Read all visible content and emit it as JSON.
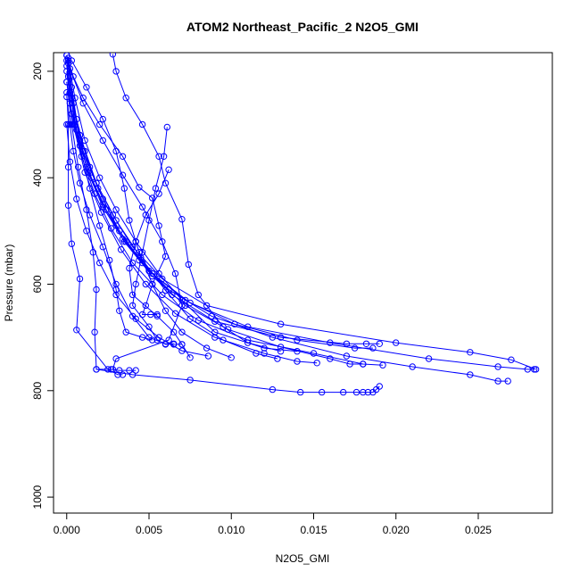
{
  "chart_data": {
    "type": "line",
    "title": "ATOM2 Northeast_Pacific_2 N2O5_GMI",
    "xlabel": "N2O5_GMI",
    "ylabel": "Pressure (mbar)",
    "xlim": [
      -0.0008,
      0.0295
    ],
    "ylim": [
      1030,
      165
    ],
    "y_inverted": true,
    "x_ticks": [
      {
        "value": 0.0,
        "label": "0.000"
      },
      {
        "value": 0.005,
        "label": "0.005"
      },
      {
        "value": 0.01,
        "label": "0.010"
      },
      {
        "value": 0.015,
        "label": "0.015"
      },
      {
        "value": 0.02,
        "label": "0.020"
      },
      {
        "value": 0.025,
        "label": "0.025"
      }
    ],
    "y_ticks": [
      {
        "value": 200,
        "label": "200"
      },
      {
        "value": 400,
        "label": "400"
      },
      {
        "value": 600,
        "label": "600"
      },
      {
        "value": 800,
        "label": "800"
      },
      {
        "value": 1000,
        "label": "1000"
      }
    ],
    "color": "#0000ff",
    "marker": "open-circle",
    "grid": false,
    "legend": "none",
    "series": [
      {
        "points": [
          [
            0.0,
            170
          ],
          [
            0.0002,
            210
          ],
          [
            0.0004,
            260
          ],
          [
            0.0008,
            320
          ],
          [
            0.0014,
            380
          ],
          [
            0.0022,
            440
          ],
          [
            0.0032,
            500
          ],
          [
            0.0046,
            560
          ],
          [
            0.0064,
            620
          ],
          [
            0.009,
            670
          ],
          [
            0.013,
            700
          ],
          [
            0.017,
            712
          ],
          [
            0.0182,
            712
          ],
          [
            0.019,
            712
          ]
        ]
      },
      {
        "points": [
          [
            0.0001,
            175
          ],
          [
            0.0003,
            230
          ],
          [
            0.0006,
            290
          ],
          [
            0.0011,
            350
          ],
          [
            0.0018,
            410
          ],
          [
            0.0028,
            470
          ],
          [
            0.004,
            530
          ],
          [
            0.0058,
            590
          ],
          [
            0.0085,
            640
          ],
          [
            0.013,
            675
          ],
          [
            0.02,
            710
          ],
          [
            0.0245,
            728
          ],
          [
            0.027,
            742
          ],
          [
            0.0285,
            760
          ]
        ]
      },
      {
        "points": [
          [
            0.0,
            180
          ],
          [
            0.0003,
            250
          ],
          [
            0.0008,
            330
          ],
          [
            0.0015,
            400
          ],
          [
            0.0024,
            460
          ],
          [
            0.0036,
            520
          ],
          [
            0.0052,
            580
          ],
          [
            0.0075,
            635
          ],
          [
            0.011,
            680
          ],
          [
            0.016,
            710
          ],
          [
            0.022,
            740
          ],
          [
            0.0262,
            755
          ],
          [
            0.028,
            760
          ],
          [
            0.0284,
            760
          ]
        ]
      },
      {
        "points": [
          [
            0.0001,
            185
          ],
          [
            0.0004,
            260
          ],
          [
            0.001,
            350
          ],
          [
            0.0019,
            420
          ],
          [
            0.003,
            490
          ],
          [
            0.0044,
            555
          ],
          [
            0.0062,
            610
          ],
          [
            0.0088,
            660
          ],
          [
            0.0125,
            700
          ],
          [
            0.017,
            735
          ],
          [
            0.021,
            755
          ],
          [
            0.0245,
            770
          ],
          [
            0.0262,
            782
          ],
          [
            0.0268,
            782
          ]
        ]
      },
      {
        "points": [
          [
            0.0,
            190
          ],
          [
            0.0002,
            240
          ],
          [
            0.0006,
            310
          ],
          [
            0.0013,
            390
          ],
          [
            0.0022,
            455
          ],
          [
            0.0034,
            515
          ],
          [
            0.005,
            575
          ],
          [
            0.0072,
            630
          ],
          [
            0.0102,
            675
          ],
          [
            0.014,
            705
          ],
          [
            0.0175,
            720
          ],
          [
            0.0186,
            720
          ]
        ]
      },
      {
        "points": [
          [
            0.0,
            200
          ],
          [
            0.0003,
            280
          ],
          [
            0.0009,
            360
          ],
          [
            0.0017,
            430
          ],
          [
            0.0027,
            495
          ],
          [
            0.004,
            560
          ],
          [
            0.0058,
            620
          ],
          [
            0.008,
            668
          ],
          [
            0.011,
            705
          ],
          [
            0.015,
            730
          ],
          [
            0.018,
            750
          ],
          [
            0.0192,
            752
          ]
        ]
      },
      {
        "points": [
          [
            0.0001,
            210
          ],
          [
            0.0005,
            300
          ],
          [
            0.0012,
            380
          ],
          [
            0.0022,
            450
          ],
          [
            0.0035,
            520
          ],
          [
            0.0052,
            585
          ],
          [
            0.0072,
            640
          ],
          [
            0.0098,
            685
          ],
          [
            0.013,
            718
          ],
          [
            0.016,
            740
          ],
          [
            0.0172,
            750
          ],
          [
            0.018,
            750
          ]
        ]
      },
      {
        "points": [
          [
            0.0,
            220
          ],
          [
            0.0004,
            300
          ],
          [
            0.0011,
            390
          ],
          [
            0.0021,
            465
          ],
          [
            0.0033,
            535
          ],
          [
            0.0048,
            600
          ],
          [
            0.0066,
            655
          ],
          [
            0.009,
            700
          ],
          [
            0.012,
            730
          ],
          [
            0.014,
            745
          ],
          [
            0.0152,
            748
          ]
        ]
      },
      {
        "points": [
          [
            0.0002,
            240
          ],
          [
            0.0008,
            320
          ],
          [
            0.0018,
            410
          ],
          [
            0.003,
            480
          ],
          [
            0.0045,
            550
          ],
          [
            0.006,
            612
          ],
          [
            0.0075,
            665
          ],
          [
            0.0095,
            705
          ],
          [
            0.0115,
            730
          ],
          [
            0.0128,
            740
          ]
        ]
      },
      {
        "points": [
          [
            0.0003,
            180
          ],
          [
            0.0012,
            230
          ],
          [
            0.0022,
            290
          ],
          [
            0.003,
            350
          ],
          [
            0.0035,
            420
          ],
          [
            0.0038,
            480
          ],
          [
            0.0044,
            540
          ],
          [
            0.0052,
            600
          ],
          [
            0.006,
            650
          ],
          [
            0.007,
            690
          ],
          [
            0.0085,
            720
          ],
          [
            0.01,
            738
          ]
        ]
      },
      {
        "points": [
          [
            0.0,
            220
          ],
          [
            0.0003,
            300
          ],
          [
            0.0007,
            380
          ],
          [
            0.0012,
            460
          ],
          [
            0.0016,
            540
          ],
          [
            0.0018,
            610
          ],
          [
            0.0017,
            690
          ],
          [
            0.0018,
            760
          ],
          [
            0.0027,
            760
          ],
          [
            0.0032,
            762
          ],
          [
            0.0038,
            762
          ],
          [
            0.0042,
            762
          ]
        ]
      },
      {
        "points": [
          [
            0.0,
            240
          ],
          [
            0.0001,
            300
          ],
          [
            0.0001,
            380
          ],
          [
            0.0001,
            452
          ],
          [
            0.0003,
            524
          ],
          [
            0.0008,
            590
          ],
          [
            0.0006,
            686
          ],
          [
            0.0025,
            760
          ],
          [
            0.0031,
            770
          ],
          [
            0.0034,
            770
          ]
        ]
      },
      {
        "points": [
          [
            0.0001,
            180
          ],
          [
            0.0005,
            250
          ],
          [
            0.0011,
            330
          ],
          [
            0.002,
            400
          ],
          [
            0.003,
            460
          ],
          [
            0.0042,
            520
          ],
          [
            0.0056,
            580
          ],
          [
            0.007,
            630
          ],
          [
            0.009,
            690
          ],
          [
            0.012,
            720
          ],
          [
            0.014,
            726
          ]
        ]
      },
      {
        "points": [
          [
            0.0002,
            195
          ],
          [
            0.001,
            260
          ],
          [
            0.0022,
            330
          ],
          [
            0.0034,
            395
          ],
          [
            0.0046,
            455
          ],
          [
            0.0058,
            520
          ],
          [
            0.0066,
            580
          ],
          [
            0.007,
            640
          ],
          [
            0.0062,
            705
          ],
          [
            0.003,
            740
          ],
          [
            0.0028,
            760
          ]
        ]
      },
      {
        "points": [
          [
            0.0028,
            168
          ],
          [
            0.003,
            200
          ],
          [
            0.0036,
            250
          ],
          [
            0.0046,
            300
          ],
          [
            0.0056,
            360
          ],
          [
            0.006,
            410
          ],
          [
            0.007,
            478
          ],
          [
            0.0074,
            563
          ],
          [
            0.008,
            620
          ],
          [
            0.0095,
            680
          ],
          [
            0.011,
            710
          ],
          [
            0.013,
            726
          ]
        ]
      },
      {
        "points": [
          [
            0.0,
            170
          ],
          [
            0.0004,
            210
          ],
          [
            0.001,
            250
          ],
          [
            0.002,
            300
          ],
          [
            0.0034,
            360
          ],
          [
            0.0044,
            418
          ],
          [
            0.0052,
            438
          ],
          [
            0.0056,
            490
          ],
          [
            0.006,
            548
          ],
          [
            0.0052,
            600
          ],
          [
            0.0048,
            640
          ],
          [
            0.0046,
            657
          ],
          [
            0.0051,
            657
          ],
          [
            0.0055,
            657
          ]
        ]
      },
      {
        "points": [
          [
            0.0061,
            305
          ],
          [
            0.0059,
            360
          ],
          [
            0.0054,
            420
          ],
          [
            0.005,
            480
          ],
          [
            0.0046,
            540
          ],
          [
            0.0042,
            600
          ],
          [
            0.004,
            640
          ],
          [
            0.005,
            680
          ],
          [
            0.0055,
            705
          ],
          [
            0.006,
            713
          ],
          [
            0.0065,
            713
          ],
          [
            0.007,
            713
          ]
        ]
      },
      {
        "points": [
          [
            0.0062,
            385
          ],
          [
            0.0056,
            430
          ],
          [
            0.0048,
            470
          ],
          [
            0.0042,
            520
          ],
          [
            0.0038,
            570
          ],
          [
            0.004,
            620
          ],
          [
            0.0055,
            660
          ],
          [
            0.0065,
            690
          ],
          [
            0.007,
            713
          ],
          [
            0.0075,
            738
          ]
        ]
      },
      {
        "points": [
          [
            0.0,
            248
          ],
          [
            0.0002,
            300
          ],
          [
            0.0004,
            350
          ],
          [
            0.0008,
            410
          ],
          [
            0.0014,
            470
          ],
          [
            0.0022,
            530
          ],
          [
            0.003,
            600
          ],
          [
            0.004,
            660
          ],
          [
            0.005,
            700
          ],
          [
            0.006,
            712
          ],
          [
            0.0065,
            712
          ]
        ]
      },
      {
        "points": [
          [
            0.0018,
            760
          ],
          [
            0.004,
            770
          ],
          [
            0.0075,
            780
          ],
          [
            0.0125,
            798
          ],
          [
            0.0142,
            803
          ],
          [
            0.0155,
            803
          ],
          [
            0.0168,
            803
          ],
          [
            0.0176,
            803
          ],
          [
            0.018,
            803
          ],
          [
            0.0183,
            803
          ],
          [
            0.0186,
            803
          ],
          [
            0.0188,
            798
          ],
          [
            0.019,
            792
          ]
        ]
      },
      {
        "points": [
          [
            0.0002,
            260
          ],
          [
            0.0008,
            340
          ],
          [
            0.0014,
            420
          ],
          [
            0.002,
            490
          ],
          [
            0.0026,
            555
          ],
          [
            0.003,
            610
          ],
          [
            0.0032,
            650
          ],
          [
            0.0036,
            690
          ],
          [
            0.0046,
            700
          ],
          [
            0.0052,
            705
          ]
        ]
      },
      {
        "points": [
          [
            0.0,
            300
          ],
          [
            0.0002,
            370
          ],
          [
            0.0006,
            440
          ],
          [
            0.0012,
            500
          ],
          [
            0.002,
            560
          ],
          [
            0.003,
            620
          ],
          [
            0.0042,
            665
          ],
          [
            0.0056,
            700
          ],
          [
            0.007,
            725
          ],
          [
            0.0086,
            735
          ]
        ]
      }
    ]
  }
}
